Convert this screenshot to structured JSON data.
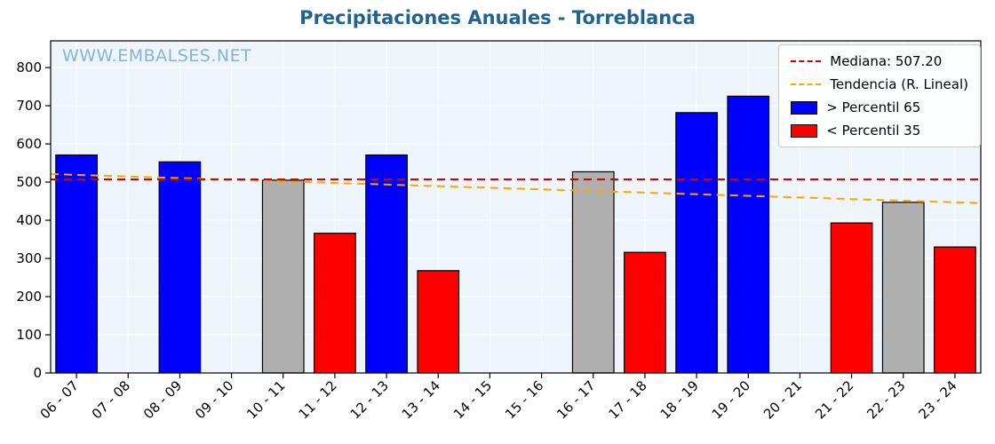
{
  "chart_data": {
    "type": "bar",
    "title": "Precipitaciones Anuales - Torreblanca",
    "title_color": "#1f6391",
    "watermark": "WWW.EMBALSES.NET",
    "watermark_color": "#85b4d6",
    "background": "#edf5fb",
    "grid_color": "#ffffff",
    "categories": [
      "06 - 07",
      "07 - 08",
      "08 - 09",
      "09 - 10",
      "10 - 11",
      "11 - 12",
      "12 - 13",
      "13 - 14",
      "14 - 15",
      "15 - 16",
      "16 - 17",
      "17 - 18",
      "18 - 19",
      "19 - 20",
      "20 - 21",
      "21 - 22",
      "22 - 23",
      "23 - 24"
    ],
    "values": [
      571,
      null,
      553,
      null,
      505,
      366,
      571,
      268,
      null,
      null,
      527,
      316,
      682,
      725,
      null,
      393,
      447,
      330
    ],
    "bar_colors": [
      "blue",
      null,
      "blue",
      null,
      "gray",
      "red",
      "blue",
      "red",
      null,
      null,
      "gray",
      "red",
      "blue",
      "blue",
      null,
      "red",
      "gray",
      "red"
    ],
    "colors": {
      "blue": "#0000ff",
      "red": "#ff0000",
      "gray": "#b0b0b0"
    },
    "yticks": [
      0,
      100,
      200,
      300,
      400,
      500,
      600,
      700,
      800
    ],
    "ylim": [
      0,
      870
    ],
    "median": {
      "value": 507.2,
      "label": "Mediana: 507.20",
      "color": "#d40000"
    },
    "trend": {
      "label": "Tendencia (R. Lineal)",
      "color": "#ffa500",
      "start_value": 521,
      "end_value": 445
    },
    "legend": [
      {
        "label": "Mediana: 507.20",
        "swatch": "dashed-line",
        "color": "#d40000"
      },
      {
        "label": "Tendencia (R. Lineal)",
        "swatch": "dashed-line",
        "color": "#ffa500"
      },
      {
        "label": "> Percentil 65",
        "swatch": "patch",
        "color": "#0000ff"
      },
      {
        "label": "< Percentil 35",
        "swatch": "patch",
        "color": "#ff0000"
      }
    ]
  }
}
